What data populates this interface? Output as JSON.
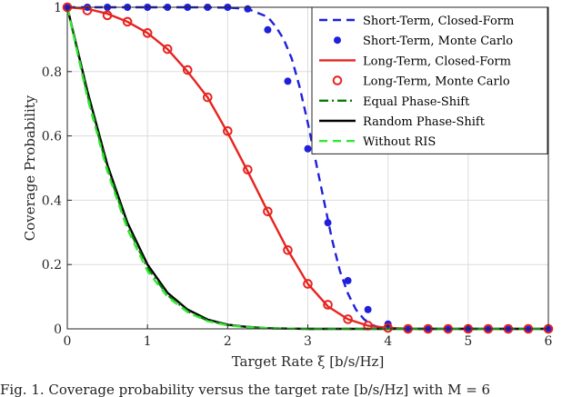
{
  "chart_data": {
    "type": "line",
    "xlabel": "Target Rate ξ [b/s/Hz]",
    "ylabel": "Coverage Probability",
    "xlim": [
      0,
      6
    ],
    "ylim": [
      0,
      1
    ],
    "xticks": [
      "0",
      "1",
      "2",
      "3",
      "4",
      "5",
      "6"
    ],
    "yticks": [
      "0",
      "0.2",
      "0.4",
      "0.6",
      "0.8",
      "1"
    ],
    "grid": true,
    "legend_position": "top-right",
    "series": [
      {
        "name": "Short-Term, Closed-Form",
        "style": "dashed",
        "color": "#1f1fdc",
        "x": [
          0,
          0.5,
          1,
          1.5,
          2,
          2.25,
          2.5,
          2.6,
          2.7,
          2.8,
          2.9,
          3.0,
          3.1,
          3.2,
          3.3,
          3.4,
          3.5,
          3.6,
          3.7,
          3.8,
          3.9,
          4.0
        ],
        "y": [
          1,
          1,
          1,
          1,
          0.999,
          0.995,
          0.97,
          0.94,
          0.9,
          0.84,
          0.75,
          0.64,
          0.52,
          0.4,
          0.28,
          0.18,
          0.11,
          0.06,
          0.03,
          0.012,
          0.004,
          0
        ]
      },
      {
        "name": "Short-Term, Monte Carlo",
        "style": "markers-filled",
        "color": "#1f1fdc",
        "x": [
          0,
          0.25,
          0.5,
          0.75,
          1.0,
          1.25,
          1.5,
          1.75,
          2.0,
          2.25,
          2.5,
          2.75,
          3.0,
          3.25,
          3.5,
          3.75,
          4.0,
          4.25,
          4.5,
          4.75,
          5.0,
          5.25,
          5.5,
          5.75,
          6.0
        ],
        "y": [
          1,
          1,
          1,
          1,
          1,
          1,
          1,
          1,
          1,
          0.995,
          0.93,
          0.77,
          0.56,
          0.33,
          0.15,
          0.06,
          0.015,
          0,
          0,
          0,
          0,
          0,
          0,
          0,
          0
        ]
      },
      {
        "name": "Long-Term, Closed-Form",
        "style": "solid",
        "color": "#e8231f",
        "x": [
          0,
          0.25,
          0.5,
          0.75,
          1.0,
          1.25,
          1.5,
          1.75,
          2.0,
          2.25,
          2.5,
          2.75,
          3.0,
          3.25,
          3.5,
          3.75,
          4.0,
          4.25,
          4.5,
          5.0,
          6.0
        ],
        "y": [
          1,
          0.995,
          0.98,
          0.955,
          0.92,
          0.87,
          0.8,
          0.72,
          0.61,
          0.49,
          0.365,
          0.245,
          0.14,
          0.07,
          0.03,
          0.01,
          0.003,
          0.001,
          0,
          0,
          0
        ]
      },
      {
        "name": "Long-Term, Monte Carlo",
        "style": "markers-open",
        "color": "#e8231f",
        "x": [
          0,
          0.25,
          0.5,
          0.75,
          1.0,
          1.25,
          1.5,
          1.75,
          2.0,
          2.25,
          2.5,
          2.75,
          3.0,
          3.25,
          3.5,
          3.75,
          4.0,
          4.25,
          4.5,
          4.75,
          5.0,
          5.25,
          5.5,
          5.75,
          6.0
        ],
        "y": [
          1,
          0.99,
          0.975,
          0.955,
          0.92,
          0.87,
          0.805,
          0.72,
          0.615,
          0.495,
          0.365,
          0.245,
          0.14,
          0.075,
          0.03,
          0.01,
          0.003,
          0,
          0,
          0,
          0,
          0,
          0,
          0,
          0
        ]
      },
      {
        "name": "Equal Phase-Shift",
        "style": "dashdot",
        "color": "#0a7a0a",
        "x": [
          0,
          0.25,
          0.5,
          0.75,
          1.0,
          1.25,
          1.5,
          1.75,
          2.0,
          2.25,
          2.5,
          2.75,
          3.0,
          3.5,
          4.0,
          5.0,
          6.0
        ],
        "y": [
          1,
          0.73,
          0.5,
          0.32,
          0.19,
          0.105,
          0.055,
          0.026,
          0.012,
          0.005,
          0.002,
          0.001,
          0,
          0,
          0,
          0,
          0
        ]
      },
      {
        "name": "Random Phase-Shift",
        "style": "solid",
        "color": "#000000",
        "x": [
          0,
          0.25,
          0.5,
          0.75,
          1.0,
          1.25,
          1.5,
          1.75,
          2.0,
          2.25,
          2.5,
          2.75,
          3.0,
          3.5,
          4.0,
          5.0,
          6.0
        ],
        "y": [
          1,
          0.74,
          0.51,
          0.33,
          0.2,
          0.112,
          0.06,
          0.029,
          0.013,
          0.006,
          0.002,
          0.001,
          0,
          0,
          0,
          0,
          0
        ]
      },
      {
        "name": "Without RIS",
        "style": "dashed",
        "color": "#33e633",
        "x": [
          0,
          0.25,
          0.5,
          0.75,
          1.0,
          1.25,
          1.5,
          1.75,
          2.0,
          2.25,
          2.5,
          2.75,
          3.0,
          3.5,
          4.0,
          5.0,
          6.0
        ],
        "y": [
          1,
          0.72,
          0.49,
          0.31,
          0.18,
          0.1,
          0.052,
          0.024,
          0.011,
          0.005,
          0.002,
          0.001,
          0,
          0,
          0,
          0,
          0
        ]
      }
    ]
  },
  "caption": "Fig. 1.   Coverage probability versus the target rate [b/s/Hz] with M = 6"
}
